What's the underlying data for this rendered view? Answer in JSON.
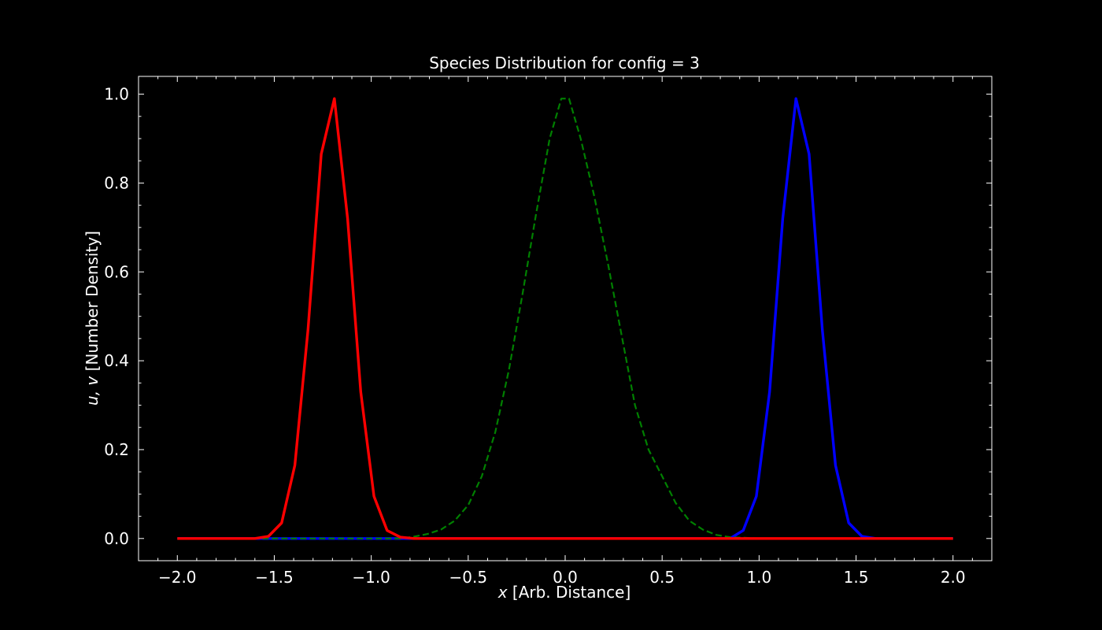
{
  "chart_data": {
    "type": "line",
    "title": "Species Distribution for config = 3",
    "xlabel": {
      "var": "x",
      "text": " [Arb. Distance]"
    },
    "ylabel": {
      "var": "u, v",
      "text": " [Number Density]"
    },
    "xlim": [
      -2.2,
      2.2
    ],
    "ylim": [
      -0.05,
      1.04
    ],
    "xticks": [
      -2.0,
      -1.5,
      -1.0,
      -0.5,
      0.0,
      0.5,
      1.0,
      1.5,
      2.0
    ],
    "xtick_labels": [
      "−2.0",
      "−1.5",
      "−1.0",
      "−0.5",
      "0.0",
      "0.5",
      "1.0",
      "1.5",
      "2.0"
    ],
    "yticks": [
      0.0,
      0.2,
      0.4,
      0.6,
      0.8,
      1.0
    ],
    "ytick_labels": [
      "0.0",
      "0.2",
      "0.4",
      "0.6",
      "0.8",
      "1.0"
    ],
    "background": "#000000",
    "foreground": "#ffffff",
    "grid": false,
    "series": [
      {
        "color": "#0000ff",
        "style": "solid",
        "x": [
          -2.0,
          0.85,
          0.918,
          0.986,
          1.054,
          1.122,
          1.19,
          1.258,
          1.326,
          1.394,
          1.462,
          1.53,
          1.6,
          2.0
        ],
        "y": [
          0.0,
          0.0,
          0.018,
          0.095,
          0.33,
          0.72,
          0.99,
          0.865,
          0.47,
          0.165,
          0.035,
          0.005,
          0.0,
          0.0
        ]
      },
      {
        "color": "#008000",
        "style": "dashed",
        "x": [
          -2.0,
          -1.6,
          -1.0,
          -0.85,
          -0.78,
          -0.71,
          -0.64,
          -0.57,
          -0.5,
          -0.43,
          -0.36,
          -0.29,
          -0.22,
          -0.15,
          -0.08,
          -0.02,
          0.02,
          0.08,
          0.15,
          0.22,
          0.29,
          0.36,
          0.43,
          0.5,
          0.57,
          0.64,
          0.71,
          0.78,
          0.85,
          1.0,
          1.6,
          2.0
        ],
        "y": [
          0.0,
          0.0,
          0.0,
          0.0,
          0.004,
          0.01,
          0.02,
          0.04,
          0.075,
          0.14,
          0.24,
          0.38,
          0.55,
          0.73,
          0.9,
          0.99,
          0.99,
          0.9,
          0.77,
          0.62,
          0.46,
          0.3,
          0.2,
          0.14,
          0.08,
          0.04,
          0.02,
          0.008,
          0.003,
          0.0,
          0.0,
          0.0
        ]
      },
      {
        "color": "#ff0000",
        "style": "solid",
        "x": [
          -2.0,
          -1.6,
          -1.53,
          -1.462,
          -1.394,
          -1.326,
          -1.258,
          -1.19,
          -1.122,
          -1.054,
          -0.986,
          -0.918,
          -0.85,
          -0.78,
          2.0
        ],
        "y": [
          0.0,
          0.0,
          0.005,
          0.035,
          0.165,
          0.47,
          0.865,
          0.99,
          0.72,
          0.33,
          0.095,
          0.018,
          0.003,
          0.0,
          0.0
        ]
      }
    ]
  }
}
